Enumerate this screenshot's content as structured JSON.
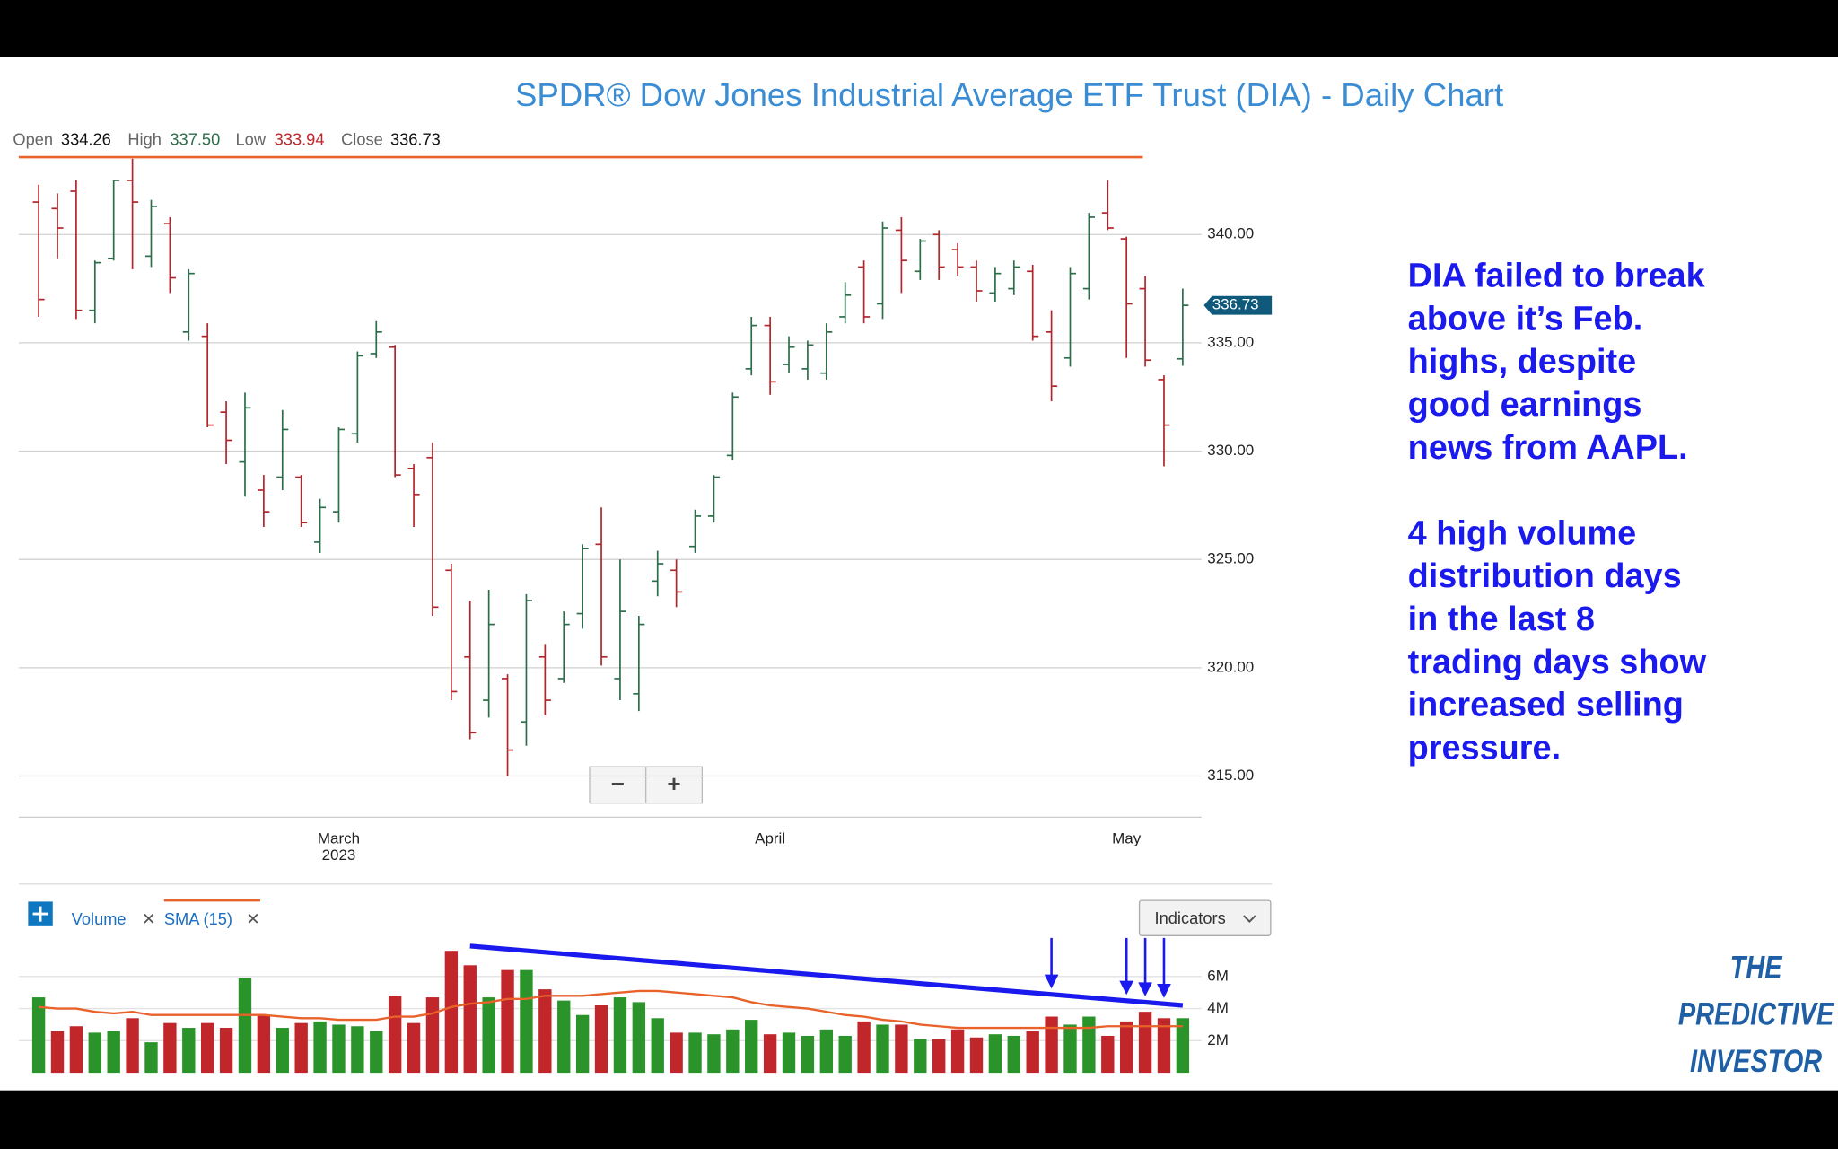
{
  "ohlc_header": [
    {
      "label": "Open",
      "value": "334.26"
    },
    {
      "label": "High",
      "value": "337.50"
    },
    {
      "label": "Low",
      "value": "333.94"
    },
    {
      "label": "Close",
      "value": "336.73"
    }
  ],
  "ui": {
    "zoom_out": "−",
    "zoom_in": "+",
    "remove": "✕",
    "indicators": "Indicators"
  },
  "annotation": {
    "paragraphs": [
      [
        "DIA failed to break",
        "above it’s Feb.",
        "highs, despite",
        "good earnings",
        "news from AAPL."
      ],
      [
        "4 high volume",
        "distribution days",
        "in the last 8",
        "trading days show",
        "increased selling",
        "pressure."
      ]
    ],
    "color": "#1a1aee"
  },
  "logo": [
    "THE",
    "PREDICTIVE",
    "INVESTOR"
  ],
  "chart_data": [
    {
      "type": "ohlc",
      "title": "SPDR® Dow Jones Industrial Average ETF Trust (DIA) - Daily Chart",
      "open": [
        341.5,
        341.2,
        342.0,
        336.5,
        338.9,
        342.5,
        339.0,
        340.5,
        335.5,
        335.3,
        331.8,
        329.5,
        328.2,
        328.8,
        328.8,
        325.8,
        327.2,
        330.8,
        334.5,
        334.8,
        329.2,
        329.7,
        324.5,
        320.5,
        318.5,
        319.5,
        317.5,
        320.5,
        319.5,
        322.5,
        325.7,
        319.5,
        318.8,
        324.0,
        324.5,
        325.6,
        327.0,
        329.8,
        333.8,
        335.8,
        334.0,
        333.8,
        333.6,
        336.2,
        338.5,
        336.8,
        340.2,
        338.3,
        340.0,
        339.3,
        338.5,
        337.3,
        337.5,
        338.3,
        335.5,
        334.3,
        337.5,
        341.0,
        339.8,
        337.5,
        333.3,
        334.26
      ],
      "high": [
        342.3,
        341.9,
        342.5,
        338.8,
        342.5,
        343.5,
        341.6,
        340.8,
        338.4,
        335.9,
        332.3,
        332.7,
        328.9,
        331.9,
        328.9,
        327.8,
        331.1,
        334.6,
        336.0,
        334.9,
        329.4,
        330.4,
        324.8,
        323.1,
        323.6,
        319.7,
        323.4,
        321.1,
        322.6,
        325.7,
        327.4,
        325.0,
        322.4,
        325.4,
        325.0,
        327.3,
        328.9,
        332.7,
        336.2,
        336.2,
        335.3,
        335.1,
        335.9,
        337.8,
        338.8,
        340.6,
        340.8,
        339.8,
        340.2,
        339.6,
        338.8,
        338.5,
        338.8,
        338.6,
        336.5,
        338.5,
        341.0,
        342.5,
        339.9,
        338.1,
        333.5,
        337.5
      ],
      "low": [
        336.2,
        338.9,
        336.1,
        335.9,
        338.8,
        338.4,
        338.5,
        337.3,
        335.1,
        331.1,
        329.4,
        327.9,
        326.5,
        328.2,
        326.5,
        325.3,
        326.7,
        330.4,
        334.3,
        328.8,
        326.5,
        322.4,
        318.5,
        316.7,
        317.7,
        315.0,
        316.4,
        317.8,
        319.3,
        321.8,
        320.1,
        318.5,
        318.0,
        323.3,
        322.8,
        325.3,
        326.7,
        329.6,
        333.5,
        332.6,
        333.6,
        333.3,
        333.3,
        335.9,
        335.9,
        336.1,
        337.3,
        337.9,
        337.9,
        338.1,
        336.9,
        336.9,
        337.2,
        335.1,
        332.3,
        333.9,
        337.0,
        340.2,
        334.3,
        333.9,
        329.3,
        333.94
      ],
      "close": [
        337.0,
        340.3,
        336.5,
        338.7,
        342.5,
        341.5,
        341.3,
        338.0,
        338.2,
        331.2,
        330.5,
        332.0,
        327.2,
        331.0,
        326.7,
        327.4,
        331.0,
        334.4,
        335.5,
        328.9,
        328.0,
        322.8,
        318.9,
        317.0,
        322.0,
        316.2,
        323.1,
        318.5,
        322.0,
        325.5,
        320.5,
        322.6,
        322.0,
        324.8,
        323.5,
        327.0,
        328.8,
        332.5,
        335.8,
        333.2,
        334.8,
        334.9,
        335.5,
        337.2,
        336.2,
        340.3,
        338.8,
        339.7,
        338.5,
        338.5,
        337.4,
        338.2,
        338.5,
        335.3,
        333.0,
        338.2,
        340.8,
        340.3,
        336.8,
        334.2,
        331.2,
        336.73
      ],
      "up_color": "#2d6e4a",
      "down_color": "#b0262b",
      "last_label": "336.73",
      "resistance": 343.57,
      "resistance_color": "#e8622a",
      "ylim": [
        313.1,
        343.79
      ],
      "yticks": [
        {
          "value": 315,
          "label": "315.00"
        },
        {
          "value": 320,
          "label": "320.00"
        },
        {
          "value": 325,
          "label": "325.00"
        },
        {
          "value": 330,
          "label": "330.00"
        },
        {
          "value": 335,
          "label": "335.00"
        },
        {
          "value": 340,
          "label": "340.00"
        }
      ],
      "xticks": [
        {
          "value": 16,
          "label": "March",
          "sublabel": "2023"
        },
        {
          "value": 39,
          "label": "April"
        },
        {
          "value": 58,
          "label": "May"
        }
      ],
      "grid": true
    },
    {
      "type": "bar",
      "series": [
        {
          "name": "Volume",
          "values": [
            4.7,
            2.6,
            2.9,
            2.5,
            2.6,
            3.4,
            1.9,
            3.1,
            2.8,
            3.1,
            2.8,
            5.9,
            3.6,
            2.8,
            3.1,
            3.2,
            3.0,
            2.9,
            2.6,
            4.8,
            3.1,
            4.7,
            7.6,
            6.7,
            4.7,
            6.4,
            6.4,
            5.2,
            4.5,
            3.6,
            4.2,
            4.7,
            4.4,
            3.4,
            2.5,
            2.5,
            2.4,
            2.7,
            3.3,
            2.4,
            2.5,
            2.3,
            2.7,
            2.3,
            3.2,
            3.0,
            3.0,
            2.1,
            2.1,
            2.7,
            2.2,
            2.4,
            2.3,
            2.6,
            3.5,
            3.0,
            3.5,
            2.3,
            3.2,
            3.8,
            3.4,
            3.4
          ]
        },
        {
          "name": "SMA (15)",
          "color": "#e8622a",
          "values": [
            4.1,
            4.0,
            4.0,
            3.8,
            3.7,
            3.8,
            3.6,
            3.6,
            3.6,
            3.6,
            3.6,
            3.6,
            3.6,
            3.5,
            3.4,
            3.4,
            3.3,
            3.3,
            3.3,
            3.5,
            3.5,
            3.7,
            4.1,
            4.3,
            4.4,
            4.6,
            4.6,
            4.8,
            4.8,
            4.8,
            4.9,
            5.0,
            5.1,
            5.1,
            5.0,
            4.9,
            4.8,
            4.7,
            4.4,
            4.2,
            4.1,
            4.0,
            3.8,
            3.6,
            3.5,
            3.3,
            3.2,
            3.0,
            2.9,
            2.8,
            2.8,
            2.8,
            2.8,
            2.8,
            2.8,
            2.8,
            2.8,
            2.9,
            2.9,
            2.9,
            2.9,
            2.9
          ]
        }
      ],
      "directions": [
        "up",
        "down",
        "down",
        "up",
        "up",
        "down",
        "up",
        "down",
        "up",
        "down",
        "down",
        "up",
        "down",
        "up",
        "down",
        "up",
        "up",
        "up",
        "up",
        "down",
        "down",
        "down",
        "down",
        "down",
        "up",
        "down",
        "up",
        "down",
        "up",
        "up",
        "down",
        "up",
        "up",
        "up",
        "down",
        "up",
        "up",
        "up",
        "up",
        "down",
        "up",
        "up",
        "up",
        "up",
        "down",
        "up",
        "down",
        "up",
        "down",
        "down",
        "down",
        "up",
        "up",
        "down",
        "down",
        "up",
        "up",
        "down",
        "down",
        "down",
        "down",
        "up"
      ],
      "up_color": "#2a942a",
      "down_color": "#c0262a",
      "trend_line": {
        "start_index": 23,
        "end_index": 61,
        "start": 7.9,
        "end": 4.2,
        "color": "#1a1aee"
      },
      "arrows": [
        54,
        58,
        59,
        60
      ],
      "ylim": [
        0,
        8.4
      ],
      "yticks": [
        {
          "value": 2,
          "label": "2M"
        },
        {
          "value": 4,
          "label": "4M"
        },
        {
          "value": 6,
          "label": "6M"
        }
      ],
      "grid": true
    }
  ]
}
